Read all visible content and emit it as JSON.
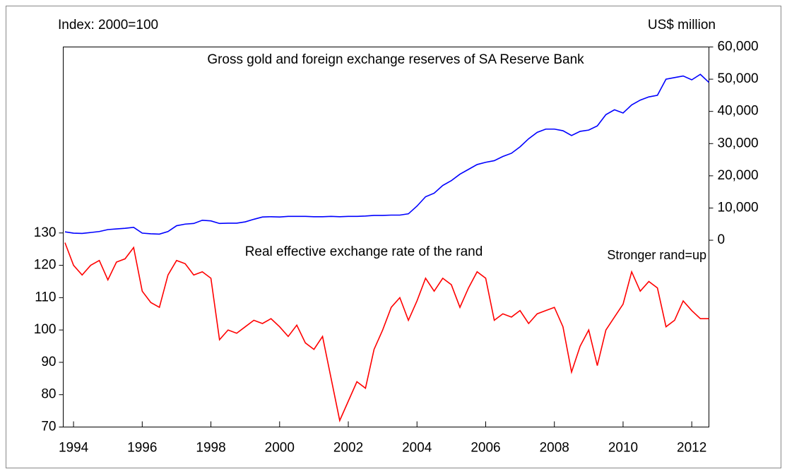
{
  "chart_data": {
    "type": "line",
    "y_label": "Index: 2000=100",
    "y2_label": "US$ million",
    "annotation": "Stronger rand=up",
    "x": [
      1993.75,
      1994,
      1994.25,
      1994.5,
      1994.75,
      1995,
      1995.25,
      1995.5,
      1995.75,
      1996,
      1996.25,
      1996.5,
      1996.75,
      1997,
      1997.25,
      1997.5,
      1997.75,
      1998,
      1998.25,
      1998.5,
      1998.75,
      1999,
      1999.25,
      1999.5,
      1999.75,
      2000,
      2000.25,
      2000.5,
      2000.75,
      2001,
      2001.25,
      2001.5,
      2001.75,
      2002,
      2002.25,
      2002.5,
      2002.75,
      2003,
      2003.25,
      2003.5,
      2003.75,
      2004,
      2004.25,
      2004.5,
      2004.75,
      2005,
      2005.25,
      2005.5,
      2005.75,
      2006,
      2006.25,
      2006.5,
      2006.75,
      2007,
      2007.25,
      2007.5,
      2007.75,
      2008,
      2008.25,
      2008.5,
      2008.75,
      2009,
      2009.25,
      2009.5,
      2009.75,
      2010,
      2010.25,
      2010.5,
      2010.75,
      2011,
      2011.25,
      2011.5,
      2011.75,
      2012,
      2012.25,
      2012.5
    ],
    "series": [
      {
        "name": "Gross gold and foreign exchange reserves of SA Reserve Bank",
        "color": "#0000ff",
        "axis": "y2",
        "values": [
          2600,
          2200,
          2100,
          2400,
          2700,
          3300,
          3500,
          3700,
          4000,
          2200,
          2000,
          1900,
          2700,
          4500,
          5000,
          5200,
          6200,
          6000,
          5200,
          5300,
          5300,
          5700,
          6500,
          7200,
          7300,
          7200,
          7400,
          7400,
          7400,
          7300,
          7300,
          7400,
          7300,
          7400,
          7400,
          7500,
          7700,
          7700,
          7800,
          7800,
          8200,
          10600,
          13500,
          14600,
          17000,
          18500,
          20500,
          22000,
          23500,
          24200,
          24700,
          26000,
          27000,
          29000,
          31500,
          33500,
          34500,
          34500,
          34000,
          32500,
          33800,
          34200,
          35500,
          39000,
          40500,
          39500,
          42000,
          43500,
          44500,
          45000,
          50000,
          50500,
          51000,
          49800,
          51500,
          49000
        ]
      },
      {
        "name": "Real effective exchange rate of the rand",
        "color": "#ff0000",
        "values": [
          127,
          120,
          117,
          120,
          121.5,
          115.5,
          121,
          122,
          125.5,
          112,
          108.5,
          107,
          117,
          121.5,
          120.5,
          117,
          118,
          116,
          97,
          100,
          99,
          101,
          103,
          102,
          103.5,
          101,
          98,
          101.5,
          96,
          94,
          98,
          85,
          72,
          78,
          84,
          82,
          94,
          100,
          107,
          110,
          103,
          109,
          116,
          112,
          116,
          114,
          107,
          113,
          118,
          116,
          103,
          105,
          104,
          106,
          102,
          105,
          106,
          107,
          101,
          87,
          95,
          100,
          89,
          100,
          104,
          108,
          118,
          112,
          115,
          113,
          101,
          103,
          109,
          106,
          103.5,
          103.5
        ]
      }
    ],
    "xlim": [
      1993.7,
      2012.5
    ],
    "xticks": [
      1994,
      1996,
      1998,
      2000,
      2002,
      2004,
      2006,
      2008,
      2010,
      2012
    ],
    "ylim": [
      70,
      187.5
    ],
    "yticks": [
      70,
      80,
      90,
      100,
      110,
      120,
      130
    ],
    "y2lim": [
      -58000,
      60000
    ],
    "y2ticks": [
      0,
      {
        "value": 10000,
        "label": "10,000"
      },
      {
        "value": 20000,
        "label": "20,000"
      },
      {
        "value": 30000,
        "label": "30,000"
      },
      {
        "value": 40000,
        "label": "40,000"
      },
      {
        "value": 50000,
        "label": "50,000"
      },
      {
        "value": 60000,
        "label": "60,000"
      }
    ]
  }
}
